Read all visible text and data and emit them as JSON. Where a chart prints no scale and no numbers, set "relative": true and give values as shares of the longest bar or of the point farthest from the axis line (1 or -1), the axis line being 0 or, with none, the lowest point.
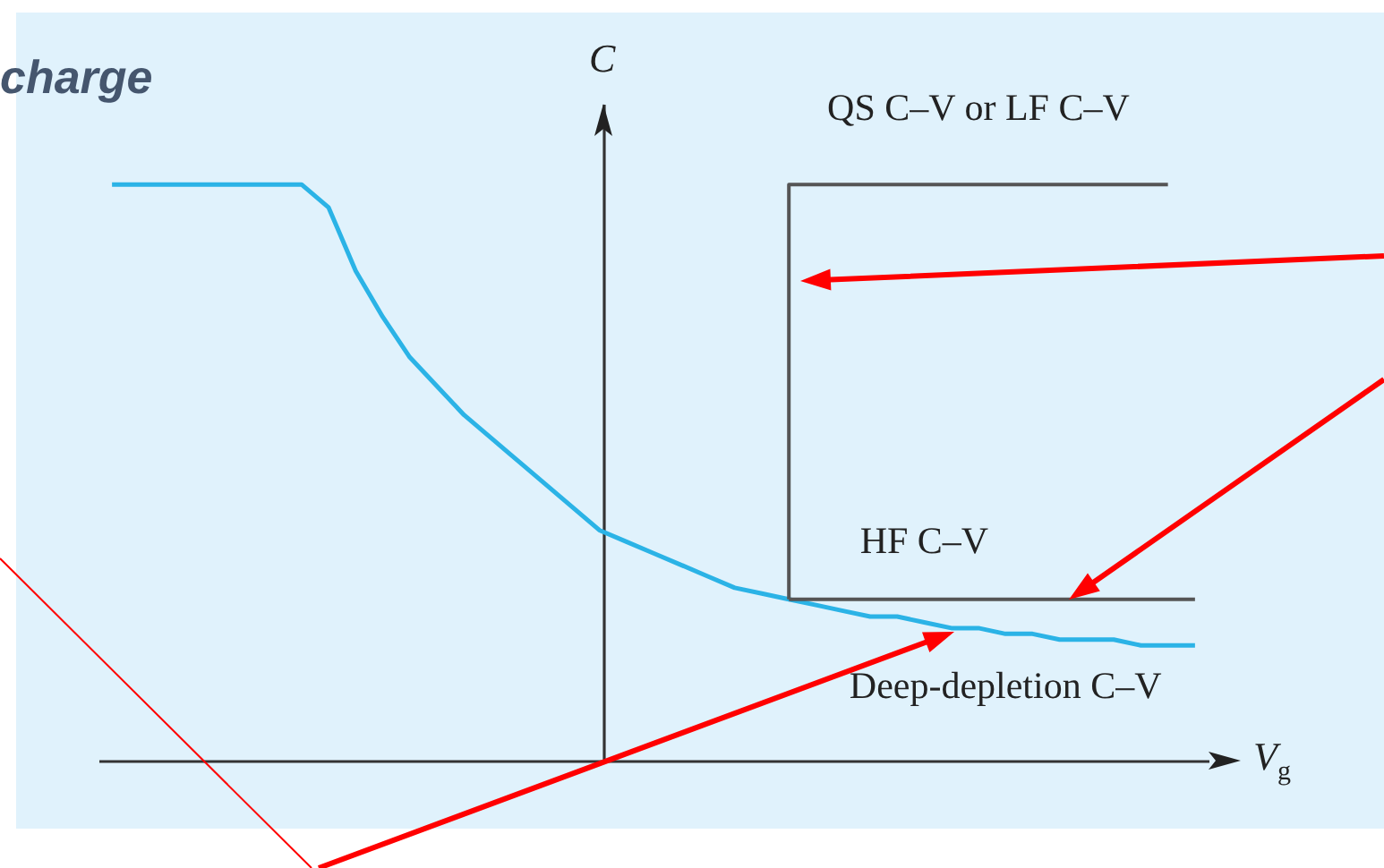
{
  "chart_data": {
    "type": "line",
    "title": "charge",
    "xlabel": "V$_{g}$",
    "ylabel": "C",
    "relative": true,
    "categories": [
      null,
      null,
      null,
      null,
      null,
      null,
      null,
      null,
      null,
      null,
      null,
      null,
      null,
      null,
      null,
      null,
      null,
      null,
      null,
      null,
      null,
      null,
      null,
      null,
      null,
      null,
      null,
      null,
      null,
      null,
      null,
      null,
      null,
      null,
      null,
      null,
      null,
      null,
      null,
      null,
      null
    ],
    "series": [
      {
        "name": "Deep-depletion C–V",
        "color": "#2bb3e6",
        "values": [
          1,
          1,
          1,
          1,
          1,
          1,
          1,
          1,
          0.96,
          0.85,
          0.77,
          0.7,
          0.65,
          0.6,
          0.56,
          0.52,
          0.48,
          0.44,
          0.4,
          0.38,
          0.36,
          0.34,
          0.32,
          0.3,
          0.29,
          0.28,
          0.27,
          0.26,
          0.25,
          0.25,
          0.24,
          0.23,
          0.23,
          0.22,
          0.22,
          0.21,
          0.21,
          0.21,
          0.2,
          0.2,
          0.2
        ]
      },
      {
        "name": "QS C–V or LF C–V",
        "type": "step",
        "color": "#555555",
        "values": [
          null,
          null,
          null,
          null,
          null,
          null,
          null,
          null,
          null,
          null,
          null,
          null,
          null,
          null,
          null,
          null,
          null,
          null,
          null,
          null,
          null,
          null,
          null,
          null,
          null,
          0.28,
          1,
          1,
          1,
          1,
          1,
          1,
          1,
          1,
          1,
          1,
          1,
          1,
          1,
          1,
          null
        ]
      },
      {
        "name": "HF C–V",
        "color": "#555555",
        "values": [
          null,
          null,
          null,
          null,
          null,
          null,
          null,
          null,
          null,
          null,
          null,
          null,
          null,
          null,
          null,
          null,
          null,
          null,
          null,
          null,
          null,
          null,
          null,
          null,
          null,
          0.28,
          0.28,
          0.28,
          0.28,
          0.28,
          0.28,
          0.28,
          0.28,
          0.28,
          0.28,
          0.28,
          0.28,
          0.28,
          0.28,
          0.28,
          0.28
        ]
      }
    ]
  }
}
